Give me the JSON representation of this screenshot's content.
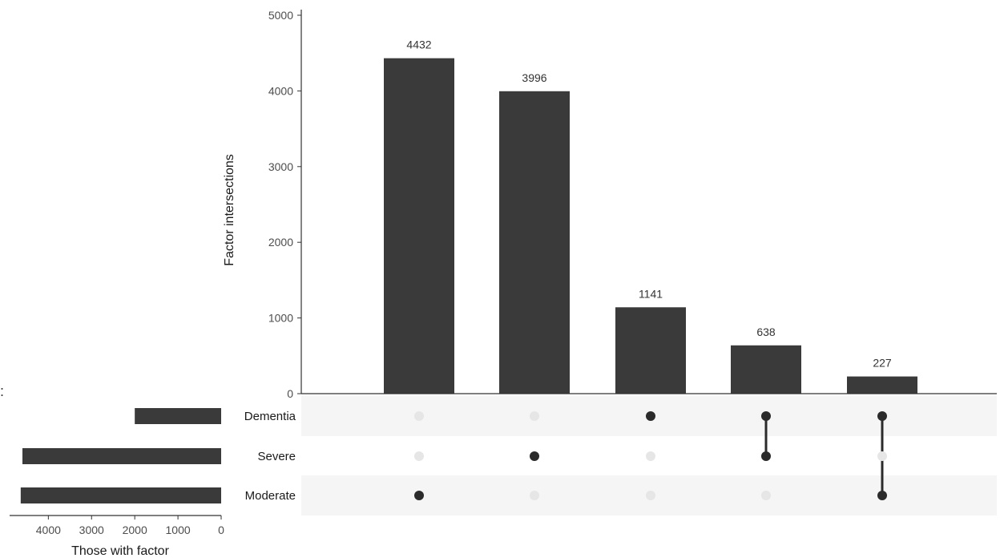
{
  "chart_data": {
    "type": "bar",
    "subtype": "upset",
    "ylabel": "Factor intersections",
    "ylim": [
      0,
      5000
    ],
    "yticks": [
      "0",
      "1000",
      "2000",
      "3000",
      "4000",
      "5000"
    ],
    "sets": [
      "Dementia",
      "Severe",
      "Moderate"
    ],
    "intersections": [
      {
        "value": 4432,
        "label": "4432",
        "members": [
          "Moderate"
        ]
      },
      {
        "value": 3996,
        "label": "3996",
        "members": [
          "Severe"
        ]
      },
      {
        "value": 1141,
        "label": "1141",
        "members": [
          "Dementia"
        ]
      },
      {
        "value": 638,
        "label": "638",
        "members": [
          "Dementia",
          "Severe"
        ]
      },
      {
        "value": 227,
        "label": "227",
        "members": [
          "Dementia",
          "Moderate"
        ]
      }
    ],
    "set_sizes": {
      "xlabel": "Those with factor",
      "xlim": [
        0,
        5000
      ],
      "xticks": [
        "4000",
        "3000",
        "2000",
        "1000",
        "0"
      ],
      "values": [
        2000,
        4600,
        4640
      ]
    },
    "colors": {
      "bar": "#3a3a3a",
      "dot_active": "#2b2b2b",
      "dot_inactive": "#e6e6e6",
      "band": "#f5f5f5",
      "axis": "#333333"
    }
  }
}
